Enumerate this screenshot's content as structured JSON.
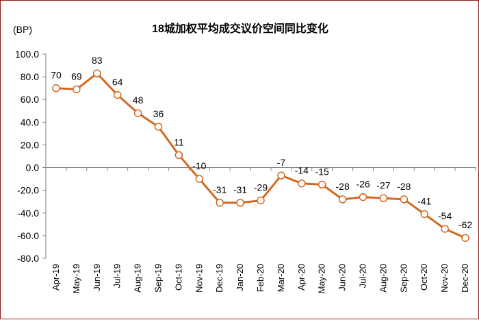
{
  "chart_data": {
    "type": "line",
    "title": "18城加权平均成交议价空间同比变化",
    "ylabel": "(BP)",
    "xlabel": "",
    "ylim": [
      -80,
      100
    ],
    "yticks": [
      "100.0",
      "80.0",
      "60.0",
      "40.0",
      "20.0",
      "0.0",
      "-20.0",
      "-40.0",
      "-60.0",
      "-80.0"
    ],
    "categories": [
      "Apr-19",
      "May-19",
      "Jun-19",
      "Jul-19",
      "Aug-19",
      "Sep-19",
      "Oct-19",
      "Nov-19",
      "Dec-19",
      "Jan-20",
      "Feb-20",
      "Mar-20",
      "Apr-20",
      "May-20",
      "Jun-20",
      "Jul-20",
      "Aug-20",
      "Sep-20",
      "Oct-20",
      "Nov-20",
      "Dec-20"
    ],
    "series": [
      {
        "values": [
          70,
          69,
          83,
          64,
          48,
          36,
          11,
          -10,
          -31,
          -31,
          -29,
          -7,
          -14,
          -15,
          -28,
          -26,
          -27,
          -28,
          -41,
          -54,
          -62
        ],
        "labels": [
          "70",
          "69",
          "83",
          "64",
          "48",
          "36",
          "11",
          "-10",
          "-31",
          "-31",
          "-29",
          "-7",
          "-14",
          "-15",
          "-28",
          "-26",
          "-27",
          "-28",
          "-41",
          "-54",
          "-62"
        ],
        "color": "#d2691e"
      }
    ],
    "grid": false,
    "legend": "none"
  }
}
